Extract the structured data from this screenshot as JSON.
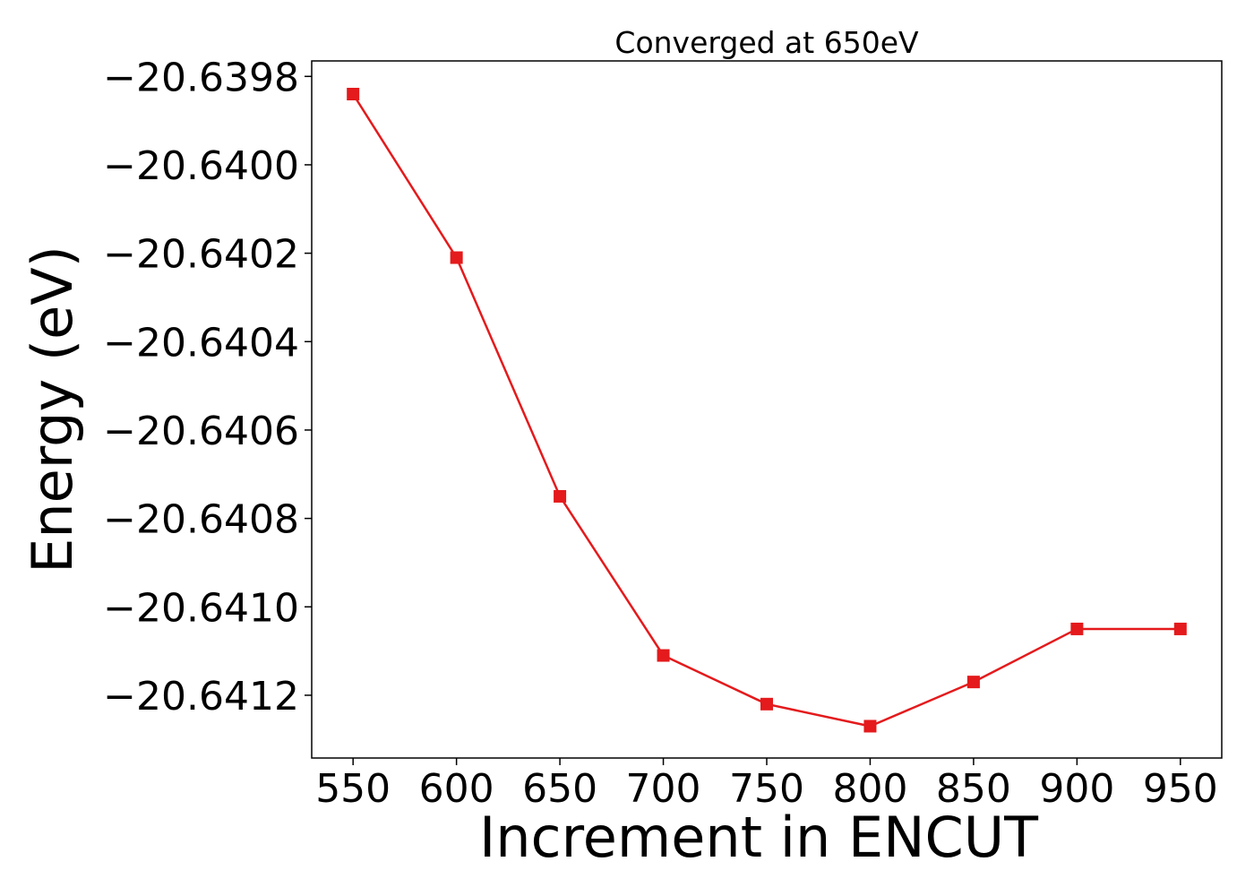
{
  "chart_data": {
    "type": "line",
    "title": "Converged at 650eV",
    "xlabel": "Increment in ENCUT",
    "ylabel": "Energy (eV)",
    "x": [
      550,
      600,
      650,
      700,
      750,
      800,
      850,
      900,
      950
    ],
    "series": [
      {
        "values": [
          -20.63984,
          -20.64021,
          -20.64075,
          -20.64111,
          -20.64122,
          -20.64127,
          -20.64117,
          -20.64105,
          -20.64105
        ]
      }
    ],
    "xlim": [
      530,
      970
    ],
    "ylim": [
      -20.641342,
      -20.639765
    ],
    "xticks": [
      550,
      600,
      650,
      700,
      750,
      800,
      850,
      900,
      950
    ],
    "xtick_labels": [
      "550",
      "600",
      "650",
      "700",
      "750",
      "800",
      "850",
      "900",
      "950"
    ],
    "yticks": [
      -20.6398,
      -20.64,
      -20.6402,
      -20.6404,
      -20.6406,
      -20.6408,
      -20.641,
      -20.6412
    ],
    "ytick_labels": [
      "−20.6398",
      "−20.6400",
      "−20.6402",
      "−20.6404",
      "−20.6406",
      "−20.6408",
      "−20.6410",
      "−20.6412"
    ],
    "marker": "square",
    "line_color": "#e41a1c",
    "grid": false,
    "legend": "none"
  }
}
